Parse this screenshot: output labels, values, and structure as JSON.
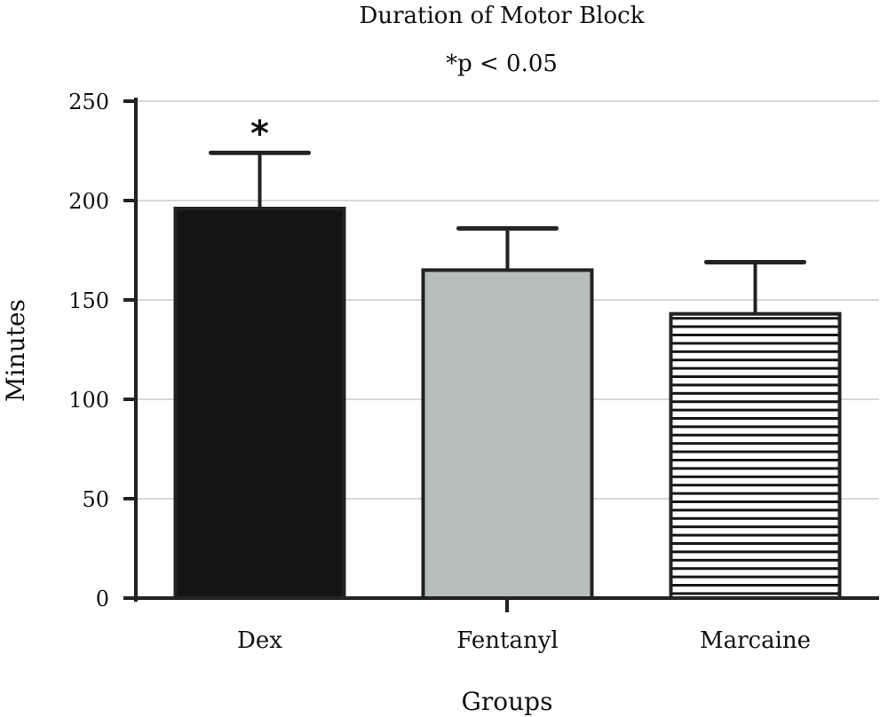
{
  "chart_data": {
    "type": "bar",
    "title": "Duration of Motor Block",
    "subtitle": "*p < 0.05",
    "xlabel": "Groups",
    "ylabel": "Minutes",
    "ylim": [
      0,
      250
    ],
    "yticks": [
      0,
      50,
      100,
      150,
      200,
      250
    ],
    "grid": true,
    "categories": [
      "Dex",
      "Fentanyl",
      "Marcaine"
    ],
    "values": [
      196,
      165,
      143
    ],
    "error_upper": [
      224,
      186,
      169
    ],
    "significance": [
      "*",
      "",
      ""
    ],
    "fills": [
      "solid-black",
      "solid-gray",
      "horizontal-stripes"
    ],
    "colors": {
      "dex": "#141414",
      "fentanyl": "#b7bfbc",
      "marcaine_stripe": "#141414",
      "grid": "#cccccc"
    }
  }
}
